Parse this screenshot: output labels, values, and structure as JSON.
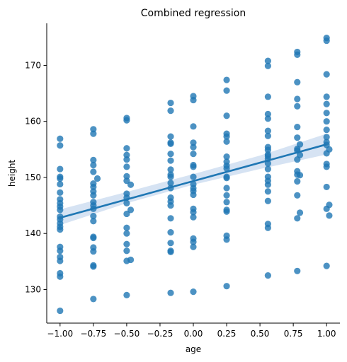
{
  "chart_data": {
    "type": "scatter",
    "title": "Combined regression",
    "xlabel": "age",
    "ylabel": "height",
    "xlim": [
      -1.1,
      1.1
    ],
    "ylim": [
      124,
      177.5
    ],
    "xticks": [
      "-1.00",
      "-0.75",
      "-0.50",
      "-0.25",
      "0.00",
      "0.25",
      "0.50",
      "0.75",
      "1.00"
    ],
    "yticks": [
      "130",
      "140",
      "150",
      "160",
      "170"
    ],
    "grid": false,
    "colors": {
      "points": "#1f77b4",
      "line": "#1f77b4",
      "band": "#aec7e8"
    },
    "points": [
      [
        -1.0,
        126.2
      ],
      [
        -1.0,
        132.3
      ],
      [
        -1.0,
        132.9
      ],
      [
        -1.0,
        135.1
      ],
      [
        -1.0,
        135.8
      ],
      [
        -1.0,
        136.9
      ],
      [
        -1.0,
        137.6
      ],
      [
        -1.0,
        140.7
      ],
      [
        -1.0,
        141.2
      ],
      [
        -1.0,
        141.8
      ],
      [
        -1.0,
        142.5
      ],
      [
        -1.0,
        143.0
      ],
      [
        -1.0,
        144.2
      ],
      [
        -1.0,
        144.8
      ],
      [
        -1.0,
        145.4
      ],
      [
        -1.0,
        146.1
      ],
      [
        -1.0,
        147.3
      ],
      [
        -1.0,
        148.8
      ],
      [
        -1.0,
        149.8
      ],
      [
        -1.0,
        150.1
      ],
      [
        -1.0,
        151.5
      ],
      [
        -1.0,
        155.7
      ],
      [
        -1.0,
        156.9
      ],
      [
        -0.75,
        128.3
      ],
      [
        -0.75,
        134.1
      ],
      [
        -0.75,
        134.3
      ],
      [
        -0.75,
        136.8
      ],
      [
        -0.75,
        137.5
      ],
      [
        -0.75,
        139.2
      ],
      [
        -0.75,
        139.4
      ],
      [
        -0.75,
        142.2
      ],
      [
        -0.75,
        143.1
      ],
      [
        -0.75,
        144.4
      ],
      [
        -0.75,
        145.0
      ],
      [
        -0.75,
        145.6
      ],
      [
        -0.75,
        146.8
      ],
      [
        -0.75,
        147.5
      ],
      [
        -0.75,
        148.3
      ],
      [
        -0.75,
        148.9
      ],
      [
        -0.75,
        151.0
      ],
      [
        -0.75,
        152.2
      ],
      [
        -0.75,
        153.1
      ],
      [
        -0.75,
        157.8
      ],
      [
        -0.75,
        158.6
      ],
      [
        -0.72,
        149.8
      ],
      [
        -0.5,
        129.0
      ],
      [
        -0.5,
        135.1
      ],
      [
        -0.5,
        136.9
      ],
      [
        -0.5,
        138.1
      ],
      [
        -0.5,
        140.0
      ],
      [
        -0.5,
        141.0
      ],
      [
        -0.5,
        143.5
      ],
      [
        -0.5,
        145.4
      ],
      [
        -0.5,
        146.4
      ],
      [
        -0.5,
        147.1
      ],
      [
        -0.5,
        149.4
      ],
      [
        -0.5,
        150.2
      ],
      [
        -0.5,
        151.9
      ],
      [
        -0.5,
        153.2
      ],
      [
        -0.5,
        154.0
      ],
      [
        -0.5,
        155.2
      ],
      [
        -0.5,
        160.2
      ],
      [
        -0.5,
        160.6
      ],
      [
        -0.47,
        135.3
      ],
      [
        -0.47,
        144.2
      ],
      [
        -0.47,
        148.7
      ],
      [
        -0.17,
        129.4
      ],
      [
        -0.17,
        136.7
      ],
      [
        -0.17,
        136.9
      ],
      [
        -0.17,
        138.3
      ],
      [
        -0.17,
        140.2
      ],
      [
        -0.17,
        142.7
      ],
      [
        -0.17,
        145.0
      ],
      [
        -0.17,
        145.7
      ],
      [
        -0.17,
        146.4
      ],
      [
        -0.17,
        148.1
      ],
      [
        -0.17,
        149.0
      ],
      [
        -0.17,
        150.1
      ],
      [
        -0.17,
        150.5
      ],
      [
        -0.17,
        151.4
      ],
      [
        -0.17,
        153.0
      ],
      [
        -0.17,
        154.2
      ],
      [
        -0.17,
        156.0
      ],
      [
        -0.17,
        156.2
      ],
      [
        -0.17,
        157.3
      ],
      [
        -0.17,
        161.9
      ],
      [
        -0.17,
        163.3
      ],
      [
        0.0,
        129.6
      ],
      [
        0.0,
        137.6
      ],
      [
        0.0,
        138.5
      ],
      [
        0.0,
        139.1
      ],
      [
        0.0,
        142.9
      ],
      [
        0.0,
        143.8
      ],
      [
        0.0,
        144.4
      ],
      [
        0.0,
        146.9
      ],
      [
        0.0,
        147.6
      ],
      [
        0.0,
        148.1
      ],
      [
        0.0,
        148.8
      ],
      [
        0.0,
        150.1
      ],
      [
        0.0,
        151.9
      ],
      [
        0.0,
        152.2
      ],
      [
        0.0,
        154.2
      ],
      [
        0.0,
        155.4
      ],
      [
        0.0,
        156.2
      ],
      [
        0.0,
        159.1
      ],
      [
        0.0,
        163.8
      ],
      [
        0.0,
        164.5
      ],
      [
        0.25,
        130.6
      ],
      [
        0.25,
        138.9
      ],
      [
        0.25,
        139.6
      ],
      [
        0.25,
        143.9
      ],
      [
        0.25,
        144.2
      ],
      [
        0.25,
        145.6
      ],
      [
        0.25,
        146.8
      ],
      [
        0.25,
        148.1
      ],
      [
        0.25,
        149.9
      ],
      [
        0.25,
        150.1
      ],
      [
        0.25,
        151.6
      ],
      [
        0.25,
        152.1
      ],
      [
        0.25,
        152.8
      ],
      [
        0.25,
        153.7
      ],
      [
        0.25,
        156.4
      ],
      [
        0.25,
        157.3
      ],
      [
        0.25,
        157.8
      ],
      [
        0.25,
        161.0
      ],
      [
        0.25,
        165.5
      ],
      [
        0.25,
        167.4
      ],
      [
        0.56,
        132.5
      ],
      [
        0.56,
        141.0
      ],
      [
        0.56,
        141.7
      ],
      [
        0.56,
        145.8
      ],
      [
        0.56,
        147.5
      ],
      [
        0.56,
        148.7
      ],
      [
        0.56,
        149.4
      ],
      [
        0.56,
        150.1
      ],
      [
        0.56,
        151.5
      ],
      [
        0.56,
        152.5
      ],
      [
        0.56,
        153.3
      ],
      [
        0.56,
        153.8
      ],
      [
        0.56,
        154.1
      ],
      [
        0.56,
        154.9
      ],
      [
        0.56,
        155.4
      ],
      [
        0.56,
        157.4
      ],
      [
        0.56,
        158.3
      ],
      [
        0.56,
        160.5
      ],
      [
        0.56,
        161.3
      ],
      [
        0.56,
        164.4
      ],
      [
        0.56,
        169.9
      ],
      [
        0.56,
        170.8
      ],
      [
        0.78,
        133.3
      ],
      [
        0.78,
        142.7
      ],
      [
        0.78,
        146.8
      ],
      [
        0.78,
        149.3
      ],
      [
        0.78,
        150.5
      ],
      [
        0.78,
        151.1
      ],
      [
        0.78,
        153.2
      ],
      [
        0.78,
        154.8
      ],
      [
        0.78,
        155.1
      ],
      [
        0.78,
        157.1
      ],
      [
        0.78,
        159.0
      ],
      [
        0.78,
        162.7
      ],
      [
        0.78,
        164.0
      ],
      [
        0.78,
        167.0
      ],
      [
        0.78,
        171.9
      ],
      [
        0.78,
        172.4
      ],
      [
        0.8,
        143.7
      ],
      [
        0.8,
        150.4
      ],
      [
        0.8,
        154.0
      ],
      [
        0.8,
        155.9
      ],
      [
        1.0,
        134.2
      ],
      [
        1.0,
        144.4
      ],
      [
        1.0,
        148.3
      ],
      [
        1.0,
        151.9
      ],
      [
        1.0,
        152.4
      ],
      [
        1.0,
        154.3
      ],
      [
        1.0,
        155.8
      ],
      [
        1.0,
        156.3
      ],
      [
        1.0,
        157.2
      ],
      [
        1.0,
        158.5
      ],
      [
        1.0,
        160.0
      ],
      [
        1.0,
        161.5
      ],
      [
        1.0,
        163.1
      ],
      [
        1.0,
        164.4
      ],
      [
        1.0,
        168.4
      ],
      [
        1.0,
        174.4
      ],
      [
        1.0,
        174.9
      ],
      [
        1.02,
        143.2
      ],
      [
        1.02,
        145.1
      ],
      [
        1.02,
        155.0
      ]
    ],
    "regression": {
      "x": [
        -1.0,
        1.0
      ],
      "y": [
        142.8,
        155.9
      ]
    },
    "confidence_band": {
      "x": [
        -1.0,
        -0.5,
        0.0,
        0.5,
        1.0
      ],
      "lower": [
        141.5,
        145.4,
        148.7,
        151.5,
        154.1
      ],
      "upper": [
        144.3,
        147.4,
        150.6,
        153.9,
        157.8
      ]
    }
  }
}
